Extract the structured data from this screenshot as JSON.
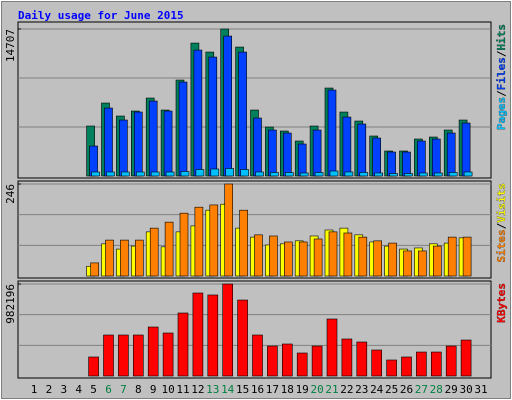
{
  "chart_data": {
    "type": "bar",
    "title": "Daily usage for June 2015",
    "categories": [
      "1",
      "2",
      "3",
      "4",
      "5",
      "6",
      "7",
      "8",
      "9",
      "10",
      "11",
      "12",
      "13",
      "14",
      "15",
      "16",
      "17",
      "18",
      "19",
      "20",
      "21",
      "22",
      "23",
      "24",
      "25",
      "26",
      "27",
      "28",
      "29",
      "30",
      "31"
    ],
    "weekend_indices": [
      5,
      6,
      12,
      13,
      19,
      20,
      26,
      27
    ],
    "weekend_color": "#008040",
    "separator": "/",
    "panels": [
      {
        "ylim": [
          0,
          14707
        ],
        "yticks": [
          14707
        ],
        "series": [
          {
            "name": "Hits",
            "color": "#00805c",
            "values": [
              null,
              null,
              null,
              null,
              5000,
              7300,
              6000,
              6500,
              7800,
              6600,
              9600,
              13300,
              12400,
              14707,
              12900,
              6600,
              4900,
              4500,
              3500,
              5000,
              8800,
              6400,
              5500,
              4000,
              2500,
              2500,
              3700,
              3900,
              4600,
              5600,
              null
            ]
          },
          {
            "name": "Files",
            "color": "#0040ff",
            "values": [
              null,
              null,
              null,
              null,
              3000,
              6800,
              5600,
              6400,
              7500,
              6500,
              9400,
              12600,
              11900,
              14000,
              12400,
              5800,
              4600,
              4300,
              3200,
              4600,
              8600,
              5900,
              5200,
              3800,
              2400,
              2400,
              3500,
              3700,
              4300,
              5300,
              null
            ]
          },
          {
            "name": "Pages",
            "color": "#00c0ff",
            "values": [
              null,
              null,
              null,
              null,
              400,
              400,
              400,
              400,
              400,
              400,
              450,
              650,
              700,
              750,
              650,
              400,
              350,
              350,
              300,
              350,
              500,
              400,
              350,
              300,
              250,
              250,
              300,
              300,
              350,
              400,
              null
            ]
          }
        ]
      },
      {
        "ylim": [
          0,
          246
        ],
        "yticks": [
          246
        ],
        "series": [
          {
            "name": "Visits",
            "color": "#ffff00",
            "values": [
              null,
              null,
              null,
              null,
              26,
              86,
              72,
              80,
              118,
              78,
              118,
              134,
              176,
              192,
              128,
              104,
              83,
              86,
              94,
              107,
              123,
              128,
              110,
              91,
              80,
              72,
              75,
              86,
              88,
              102,
              null
            ]
          },
          {
            "name": "Sites",
            "color": "#ff8000",
            "values": [
              null,
              null,
              null,
              null,
              35,
              96,
              96,
              96,
              128,
              144,
              168,
              184,
              190,
              246,
              176,
              110,
              107,
              91,
              91,
              99,
              118,
              115,
              104,
              94,
              88,
              67,
              67,
              80,
              104,
              104,
              null
            ]
          }
        ]
      },
      {
        "ylim": [
          0,
          982196
        ],
        "yticks": [
          982196
        ],
        "series": [
          {
            "name": "KBytes",
            "color": "#ff0000",
            "values": [
              null,
              null,
              null,
              null,
              203000,
              437700,
              437700,
              437700,
              523000,
              459000,
              672600,
              886000,
              865000,
              982196,
              811000,
              437700,
              320000,
              341600,
              245500,
              320000,
              608500,
              395000,
              363000,
              277600,
              170800,
              203000,
              256000,
              256000,
              320000,
              384000,
              null
            ]
          }
        ]
      }
    ]
  }
}
